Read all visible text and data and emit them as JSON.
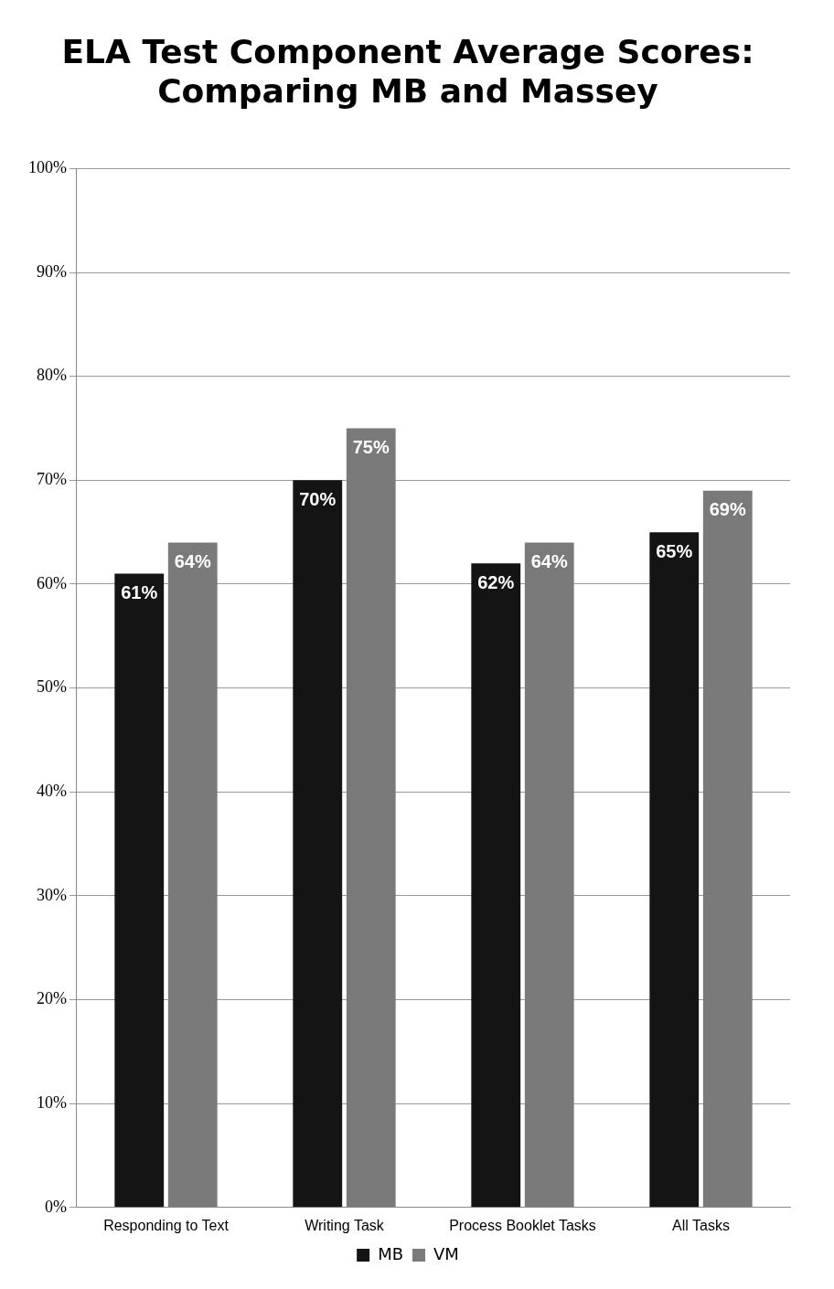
{
  "chart_data": {
    "type": "bar",
    "title": "ELA Test Component Average Scores:\nComparing MB and Massey",
    "categories": [
      "Responding to Text",
      "Writing Task",
      "Process Booklet Tasks",
      "All Tasks"
    ],
    "series": [
      {
        "name": "MB",
        "color": "#141414",
        "values": [
          61,
          70,
          62,
          65
        ],
        "value_labels": [
          "61%",
          "70%",
          "62%",
          "65%"
        ]
      },
      {
        "name": "VM",
        "color": "#7a7a7a",
        "values": [
          64,
          75,
          64,
          69
        ],
        "value_labels": [
          "64%",
          "75%",
          "64%",
          "69%"
        ]
      }
    ],
    "ylim": [
      0,
      100
    ],
    "yticks": [
      {
        "value": 0,
        "label": "0%"
      },
      {
        "value": 10,
        "label": "10%"
      },
      {
        "value": 20,
        "label": "20%"
      },
      {
        "value": 30,
        "label": "30%"
      },
      {
        "value": 40,
        "label": "40%"
      },
      {
        "value": 50,
        "label": "50%"
      },
      {
        "value": 60,
        "label": "60%"
      },
      {
        "value": 70,
        "label": "70%"
      },
      {
        "value": 80,
        "label": "80%"
      },
      {
        "value": 90,
        "label": "90%"
      },
      {
        "value": 100,
        "label": "100%"
      }
    ],
    "grid": "y",
    "legend": "bottom"
  }
}
